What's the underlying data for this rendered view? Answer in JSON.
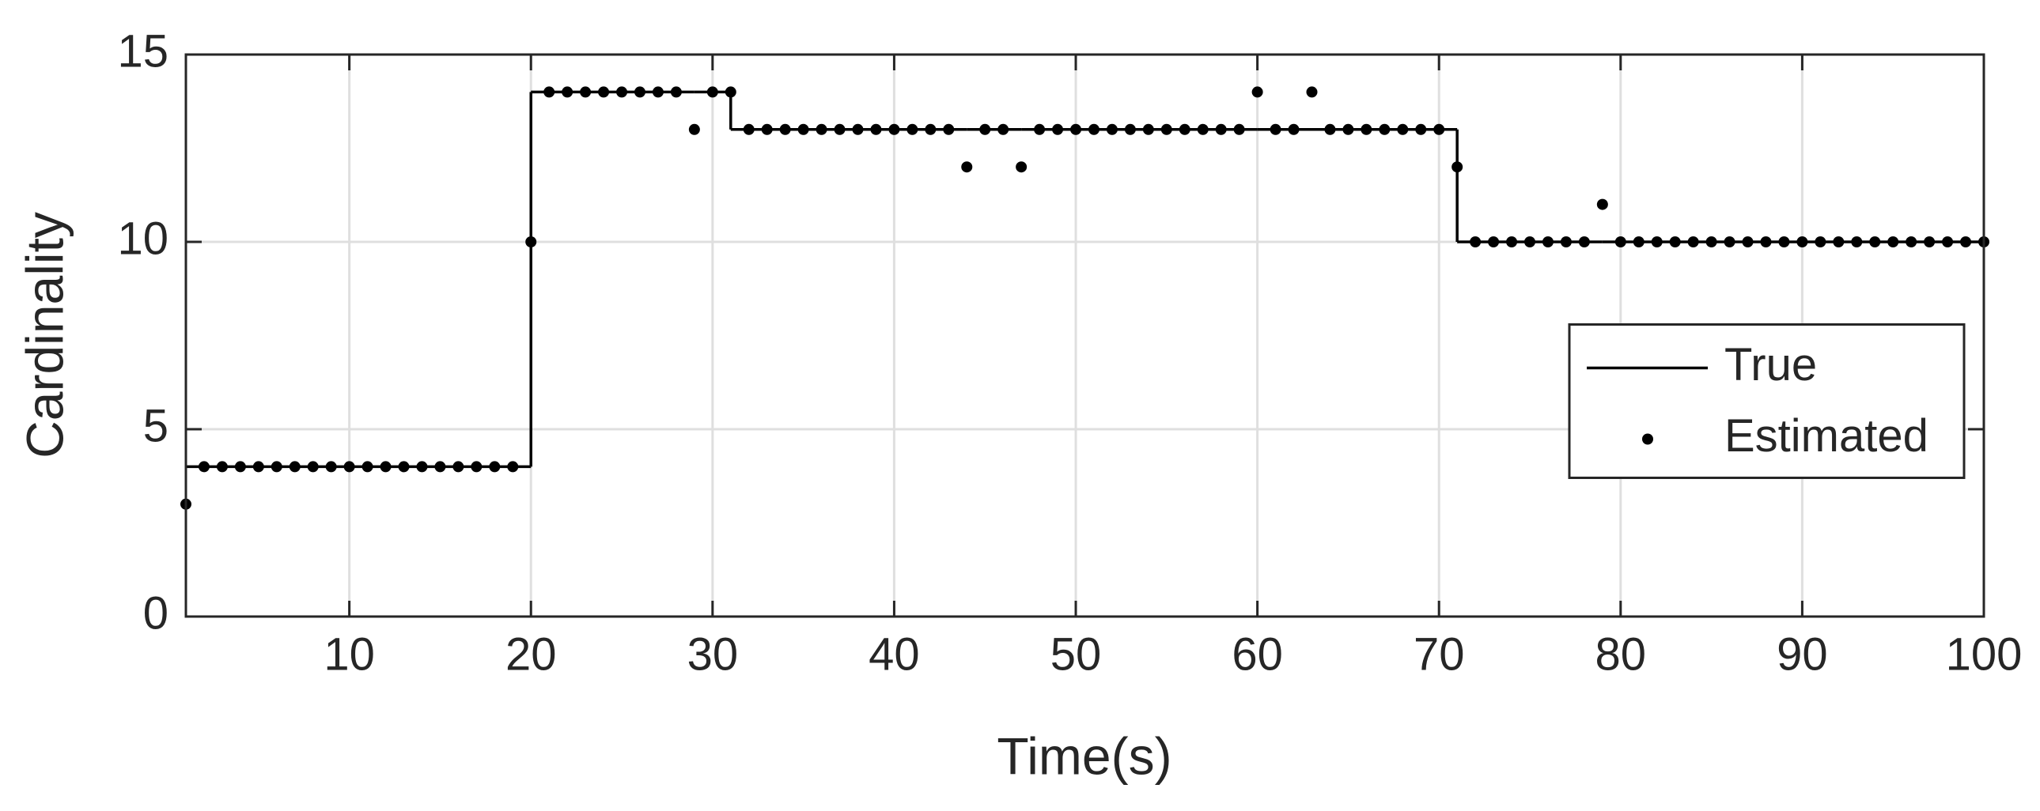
{
  "chart_data": {
    "type": "line",
    "x_label": "Time(s)",
    "y_label": "Cardinality",
    "x": [
      1,
      2,
      3,
      4,
      5,
      6,
      7,
      8,
      9,
      10,
      11,
      12,
      13,
      14,
      15,
      16,
      17,
      18,
      19,
      20,
      21,
      22,
      23,
      24,
      25,
      26,
      27,
      28,
      29,
      30,
      31,
      32,
      33,
      34,
      35,
      36,
      37,
      38,
      39,
      40,
      41,
      42,
      43,
      44,
      45,
      46,
      47,
      48,
      49,
      50,
      51,
      52,
      53,
      54,
      55,
      56,
      57,
      58,
      59,
      60,
      61,
      62,
      63,
      64,
      65,
      66,
      67,
      68,
      69,
      70,
      71,
      72,
      73,
      74,
      75,
      76,
      77,
      78,
      79,
      80,
      81,
      82,
      83,
      84,
      85,
      86,
      87,
      88,
      89,
      90,
      91,
      92,
      93,
      94,
      95,
      96,
      97,
      98,
      99,
      100
    ],
    "series": [
      {
        "name": "True",
        "style": "stairs",
        "color": "#000000",
        "values": [
          4,
          4,
          4,
          4,
          4,
          4,
          4,
          4,
          4,
          4,
          4,
          4,
          4,
          4,
          4,
          4,
          4,
          4,
          4,
          14,
          14,
          14,
          14,
          14,
          14,
          14,
          14,
          14,
          14,
          14,
          13,
          13,
          13,
          13,
          13,
          13,
          13,
          13,
          13,
          13,
          13,
          13,
          13,
          13,
          13,
          13,
          13,
          13,
          13,
          13,
          13,
          13,
          13,
          13,
          13,
          13,
          13,
          13,
          13,
          13,
          13,
          13,
          13,
          13,
          13,
          13,
          13,
          13,
          13,
          13,
          10,
          10,
          10,
          10,
          10,
          10,
          10,
          10,
          10,
          10,
          10,
          10,
          10,
          10,
          10,
          10,
          10,
          10,
          10,
          10,
          10,
          10,
          10,
          10,
          10,
          10,
          10,
          10,
          10,
          10
        ]
      },
      {
        "name": "Estimated",
        "style": "dots",
        "color": "#000000",
        "values": [
          3,
          4,
          4,
          4,
          4,
          4,
          4,
          4,
          4,
          4,
          4,
          4,
          4,
          4,
          4,
          4,
          4,
          4,
          4,
          10,
          14,
          14,
          14,
          14,
          14,
          14,
          14,
          14,
          13,
          14,
          14,
          13,
          13,
          13,
          13,
          13,
          13,
          13,
          13,
          13,
          13,
          13,
          13,
          12,
          13,
          13,
          12,
          13,
          13,
          13,
          13,
          13,
          13,
          13,
          13,
          13,
          13,
          13,
          13,
          14,
          13,
          13,
          14,
          13,
          13,
          13,
          13,
          13,
          13,
          13,
          12,
          10,
          10,
          10,
          10,
          10,
          10,
          10,
          11,
          10,
          10,
          10,
          10,
          10,
          10,
          10,
          10,
          10,
          10,
          10,
          10,
          10,
          10,
          10,
          10,
          10,
          10,
          10,
          10,
          10
        ]
      }
    ],
    "xlim": [
      1,
      100
    ],
    "xticks": [
      10,
      20,
      30,
      40,
      50,
      60,
      70,
      80,
      90,
      100
    ],
    "ylim": [
      0,
      15
    ],
    "yticks": [
      0,
      5,
      10,
      15
    ],
    "grid": true,
    "legend_position": "east"
  }
}
